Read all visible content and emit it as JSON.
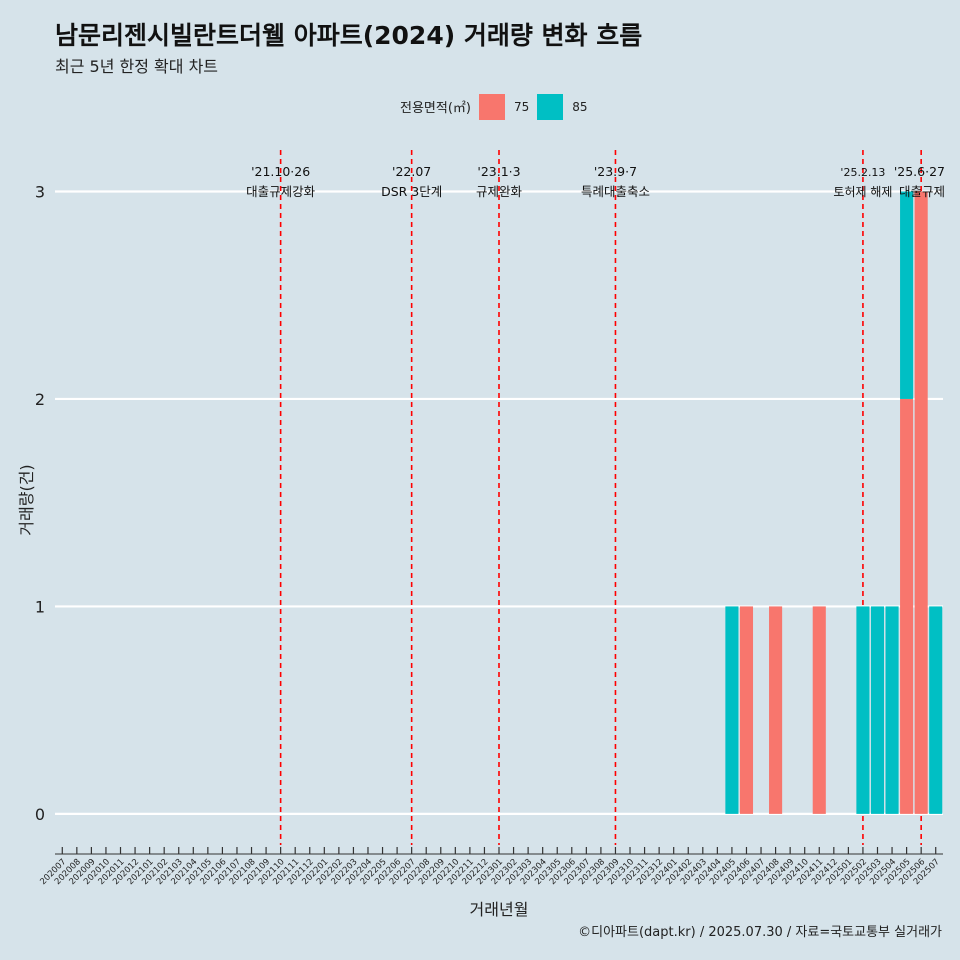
{
  "header": {
    "title": "남문리젠시빌란트더웰 아파트(2024) 거래량 변화 흐름",
    "subtitle": "최근 5년 한정 확대 차트"
  },
  "legend": {
    "title": "전용면적(㎡)",
    "items": [
      {
        "label": "75",
        "color": "#f8766d"
      },
      {
        "label": "85",
        "color": "#00bfc4"
      }
    ]
  },
  "caption": "©디아파트(dapt.kr) / 2025.07.30 / 자료=국토교통부 실거래가",
  "chart_data": {
    "type": "bar",
    "stacked": true,
    "xlabel": "거래년월",
    "ylabel": "거래량(건)",
    "ylim": [
      -0.15,
      3.2
    ],
    "yticks": [
      0,
      1,
      2,
      3
    ],
    "grid": true,
    "legend_position": "top",
    "categories": [
      "202007",
      "202008",
      "202009",
      "202010",
      "202011",
      "202012",
      "202101",
      "202102",
      "202103",
      "202104",
      "202105",
      "202106",
      "202107",
      "202108",
      "202109",
      "202110",
      "202111",
      "202112",
      "202201",
      "202202",
      "202203",
      "202204",
      "202205",
      "202206",
      "202207",
      "202208",
      "202209",
      "202210",
      "202211",
      "202212",
      "202301",
      "202302",
      "202303",
      "202304",
      "202305",
      "202306",
      "202307",
      "202308",
      "202309",
      "202310",
      "202311",
      "202312",
      "202401",
      "202402",
      "202403",
      "202404",
      "202405",
      "202406",
      "202407",
      "202408",
      "202409",
      "202410",
      "202411",
      "202412",
      "202501",
      "202502",
      "202503",
      "202504",
      "202505",
      "202506",
      "202507"
    ],
    "bars": [
      {
        "x": "202405",
        "series": "85",
        "value": 1
      },
      {
        "x": "202406",
        "series": "75",
        "value": 1
      },
      {
        "x": "202408",
        "series": "75",
        "value": 1
      },
      {
        "x": "202411",
        "series": "75",
        "value": 1
      },
      {
        "x": "202502",
        "series": "85",
        "value": 1
      },
      {
        "x": "202503",
        "series": "85",
        "value": 1
      },
      {
        "x": "202504",
        "series": "85",
        "value": 1
      },
      {
        "x": "202505",
        "series": "75",
        "value": 2
      },
      {
        "x": "202505",
        "series": "85",
        "value": 1
      },
      {
        "x": "202506",
        "series": "75",
        "value": 3
      },
      {
        "x": "202507",
        "series": "85",
        "value": 1
      }
    ],
    "events": [
      {
        "x": "202110",
        "date": "'21.10·26",
        "label": "대출규제강화"
      },
      {
        "x": "202207",
        "date": "'22.07",
        "label": "DSR 3단계"
      },
      {
        "x": "202301",
        "date": "'23.1·3",
        "label": "규제완화"
      },
      {
        "x": "202309",
        "date": "'23.9·7",
        "label": "특례대출축소"
      },
      {
        "x": "202502",
        "date": "'25.2.13",
        "label": "토허제 해제"
      },
      {
        "x": "202506",
        "date": "'25.6·27",
        "label": "대출규제"
      }
    ],
    "colors": {
      "75": "#f8766d",
      "85": "#00bfc4",
      "event_line": "#ff0000",
      "grid": "#ffffff",
      "background": "#d6e3ea"
    }
  }
}
